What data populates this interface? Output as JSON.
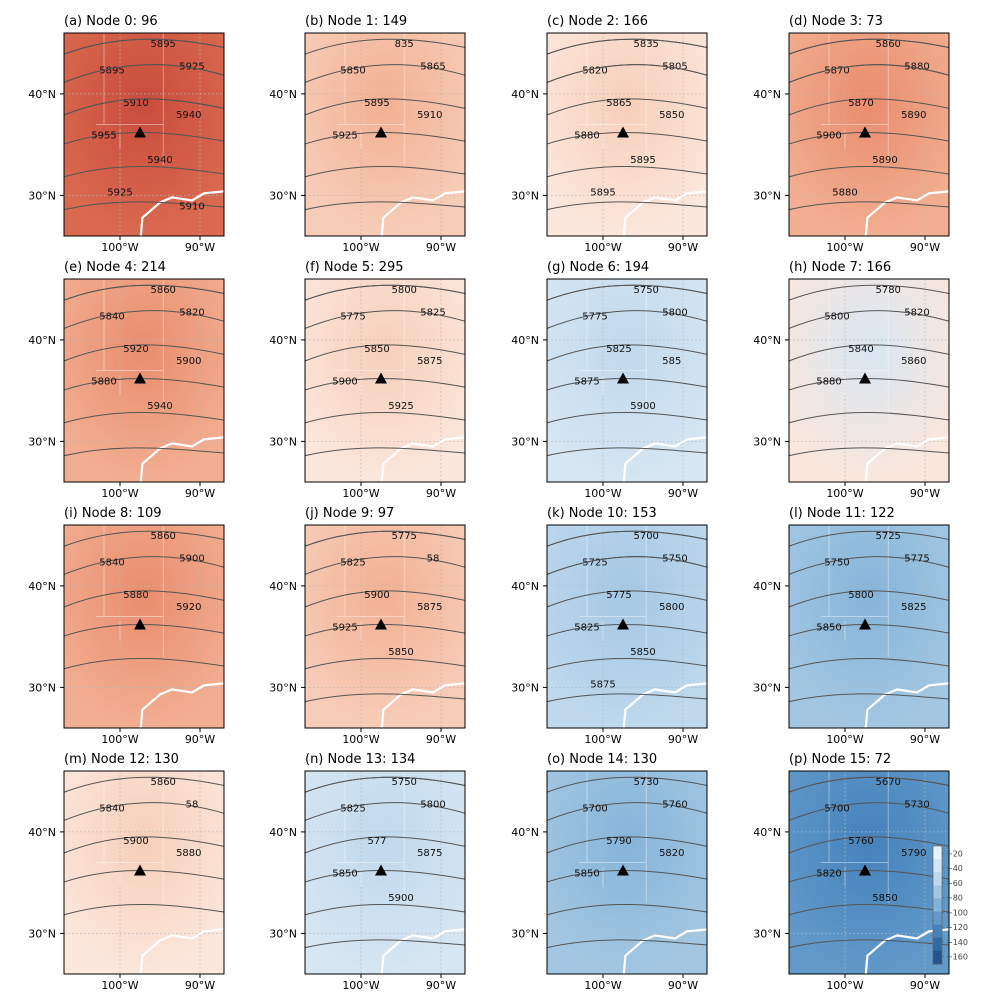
{
  "figure": {
    "lat_ticks": [
      "40°N",
      "30°N"
    ],
    "lon_ticks": [
      "100°W",
      "90°W"
    ],
    "colorbar": {
      "ticks": [
        "−20",
        "−40",
        "−60",
        "−80",
        "−100",
        "−120",
        "−140",
        "−160"
      ],
      "colors": [
        "#eaf2f9",
        "#d6e6f3",
        "#bfd8ec",
        "#a3c7e3",
        "#84b3d8",
        "#6199c9",
        "#4481ba",
        "#2f6aa7",
        "#1f5591"
      ]
    }
  },
  "nodes": [
    {
      "title": "(a) Node 0: 96",
      "tone": 5,
      "contours": [
        "5895",
        "5895",
        "5925",
        "5910",
        "5940",
        "5955",
        "5940",
        "5925",
        "5910"
      ]
    },
    {
      "title": "(b) Node 1: 149",
      "tone": 2,
      "contours": [
        "835",
        "5850",
        "5865",
        "5895",
        "5910",
        "5925"
      ]
    },
    {
      "title": "(c) Node 2: 166",
      "tone": 1,
      "contours": [
        "5835",
        "5820",
        "5805",
        "5865",
        "5850",
        "5880",
        "5895",
        "5895"
      ]
    },
    {
      "title": "(d) Node 3: 73",
      "tone": 3,
      "contours": [
        "5860",
        "5870",
        "5880",
        "5870",
        "5890",
        "5900",
        "5890",
        "5880"
      ]
    },
    {
      "title": "(e) Node 4: 214",
      "tone": 3,
      "contours": [
        "5860",
        "5840",
        "5820",
        "5920",
        "5900",
        "5880",
        "5940"
      ]
    },
    {
      "title": "(f) Node 5: 295",
      "tone": 1,
      "contours": [
        "5800",
        "5775",
        "5825",
        "5850",
        "5875",
        "5900",
        "5925"
      ]
    },
    {
      "title": "(g) Node 6: 194",
      "tone": -2,
      "contours": [
        "5750",
        "5775",
        "5800",
        "5825",
        "585",
        "5875",
        "5900"
      ]
    },
    {
      "title": "(h) Node 7: 166",
      "tone": -1,
      "contours": [
        "5780",
        "5800",
        "5820",
        "5840",
        "5860",
        "5880"
      ]
    },
    {
      "title": "(i) Node 8: 109",
      "tone": 3,
      "contours": [
        "5860",
        "5840",
        "5900",
        "5880",
        "5920"
      ]
    },
    {
      "title": "(j) Node 9: 97",
      "tone": 2,
      "contours": [
        "5775",
        "5825",
        "58",
        "5900",
        "5875",
        "5925",
        "5850"
      ]
    },
    {
      "title": "(k) Node 10: 153",
      "tone": -3,
      "contours": [
        "5700",
        "5725",
        "5750",
        "5775",
        "5800",
        "5825",
        "5850",
        "5875"
      ]
    },
    {
      "title": "(l) Node 11: 122",
      "tone": -4,
      "contours": [
        "5725",
        "5750",
        "5775",
        "5800",
        "5825",
        "5850"
      ]
    },
    {
      "title": "(m) Node 12: 130",
      "tone": 1,
      "contours": [
        "5860",
        "5840",
        "58",
        "5900",
        "5880"
      ]
    },
    {
      "title": "(n) Node 13: 134",
      "tone": -2,
      "contours": [
        "5750",
        "5825",
        "5800",
        "577",
        "5875",
        "5850",
        "5900"
      ]
    },
    {
      "title": "(o) Node 14: 130",
      "tone": -4,
      "contours": [
        "5730",
        "5700",
        "5760",
        "5790",
        "5820",
        "5850"
      ]
    },
    {
      "title": "(p) Node 15: 72",
      "tone": -6,
      "contours": [
        "5670",
        "5700",
        "5730",
        "5760",
        "5790",
        "5820",
        "5850"
      ]
    }
  ]
}
